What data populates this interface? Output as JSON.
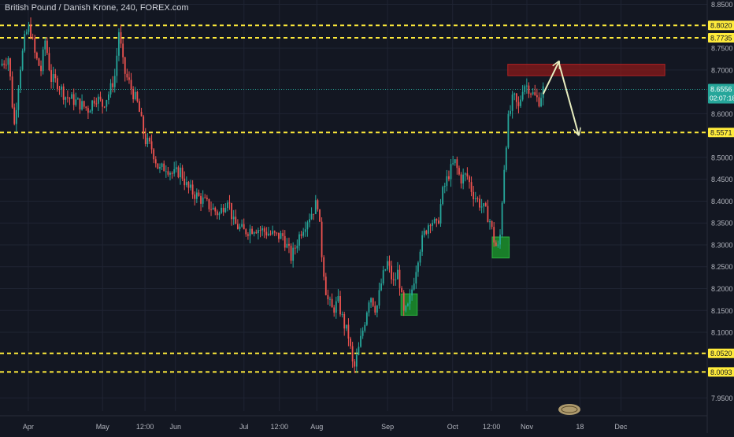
{
  "app": {
    "symbol_title": "British Pound / Danish Krone, 240, FOREX.com"
  },
  "colors": {
    "background": "#131722",
    "grid": "#1f2433",
    "axis_text": "#b2b5be",
    "candle_up": "#26a69a",
    "candle_down": "#ef5350",
    "level_line": "#ffeb3b",
    "level_label_bg": "#ffeb3b",
    "price_label_bg": "#26a69a",
    "resistance_box": "#8b1a1a",
    "support_box": "#1b8a2a",
    "arrow": "#e8eec0"
  },
  "chart_data": {
    "type": "candlestick",
    "title": "British Pound / Danish Krone, 240, FOREX.com",
    "ylim": [
      7.92,
      8.86
    ],
    "y_ticks": [
      {
        "value": 8.85,
        "label": "8.8500"
      },
      {
        "value": 8.75,
        "label": "8.7500"
      },
      {
        "value": 8.7,
        "label": "8.7000"
      },
      {
        "value": 8.6,
        "label": "8.6000"
      },
      {
        "value": 8.5,
        "label": "8.5000"
      },
      {
        "value": 8.45,
        "label": "8.4500"
      },
      {
        "value": 8.4,
        "label": "8.4000"
      },
      {
        "value": 8.35,
        "label": "8.3500"
      },
      {
        "value": 8.3,
        "label": "8.3000"
      },
      {
        "value": 8.25,
        "label": "8.2500"
      },
      {
        "value": 8.2,
        "label": "8.2000"
      },
      {
        "value": 8.15,
        "label": "8.1500"
      },
      {
        "value": 8.1,
        "label": "8.1000"
      },
      {
        "value": 7.95,
        "label": "7.9500"
      }
    ],
    "x_ticks": [
      "Apr",
      "May",
      "12:00",
      "Jun",
      "Jul",
      "12:00",
      "Aug",
      "Sep",
      "Oct",
      "12:00",
      "Nov",
      "18",
      "Dec"
    ],
    "x_tick_pos": [
      0.04,
      0.145,
      0.205,
      0.248,
      0.345,
      0.395,
      0.448,
      0.548,
      0.64,
      0.695,
      0.745,
      0.82,
      0.878
    ],
    "horizontal_levels": [
      {
        "value": 8.802,
        "label": "8.8020"
      },
      {
        "value": 8.7735,
        "label": "8.7735"
      },
      {
        "value": 8.5571,
        "label": "8.5571"
      },
      {
        "value": 8.052,
        "label": "8.0520"
      },
      {
        "value": 8.0093,
        "label": "8.0093"
      }
    ],
    "current_price": {
      "value": 8.6556,
      "label": "8.6556",
      "countdown": "02:07:18"
    },
    "zones": [
      {
        "kind": "resistance",
        "from_x": 0.718,
        "to_x": 0.94,
        "y_low": 8.687,
        "y_high": 8.713
      },
      {
        "kind": "support",
        "from_x": 0.567,
        "to_x": 0.59,
        "y_low": 8.139,
        "y_high": 8.188
      },
      {
        "kind": "support",
        "from_x": 0.696,
        "to_x": 0.72,
        "y_low": 8.27,
        "y_high": 8.318
      }
    ],
    "projection_arrows": [
      {
        "from_x": 0.768,
        "from_y": 8.645,
        "to_x": 0.79,
        "to_y": 8.718
      },
      {
        "from_x": 0.79,
        "from_y": 8.718,
        "to_x": 0.818,
        "to_y": 8.553
      }
    ],
    "price_path": [
      [
        0.0,
        8.71
      ],
      [
        0.012,
        8.73
      ],
      [
        0.02,
        8.57
      ],
      [
        0.028,
        8.7
      ],
      [
        0.036,
        8.78
      ],
      [
        0.042,
        8.8
      ],
      [
        0.05,
        8.73
      ],
      [
        0.058,
        8.7
      ],
      [
        0.064,
        8.77
      ],
      [
        0.072,
        8.68
      ],
      [
        0.082,
        8.67
      ],
      [
        0.092,
        8.64
      ],
      [
        0.105,
        8.63
      ],
      [
        0.115,
        8.62
      ],
      [
        0.125,
        8.61
      ],
      [
        0.135,
        8.64
      ],
      [
        0.145,
        8.62
      ],
      [
        0.155,
        8.65
      ],
      [
        0.163,
        8.69
      ],
      [
        0.168,
        8.79
      ],
      [
        0.175,
        8.7
      ],
      [
        0.185,
        8.66
      ],
      [
        0.195,
        8.62
      ],
      [
        0.205,
        8.54
      ],
      [
        0.215,
        8.52
      ],
      [
        0.225,
        8.47
      ],
      [
        0.235,
        8.48
      ],
      [
        0.245,
        8.46
      ],
      [
        0.255,
        8.47
      ],
      [
        0.265,
        8.43
      ],
      [
        0.28,
        8.41
      ],
      [
        0.295,
        8.39
      ],
      [
        0.31,
        8.37
      ],
      [
        0.322,
        8.41
      ],
      [
        0.33,
        8.35
      ],
      [
        0.345,
        8.33
      ],
      [
        0.36,
        8.34
      ],
      [
        0.375,
        8.33
      ],
      [
        0.39,
        8.32
      ],
      [
        0.4,
        8.32
      ],
      [
        0.412,
        8.27
      ],
      [
        0.425,
        8.33
      ],
      [
        0.435,
        8.36
      ],
      [
        0.443,
        8.38
      ],
      [
        0.449,
        8.4
      ],
      [
        0.455,
        8.28
      ],
      [
        0.462,
        8.18
      ],
      [
        0.47,
        8.15
      ],
      [
        0.478,
        8.17
      ],
      [
        0.486,
        8.12
      ],
      [
        0.493,
        8.09
      ],
      [
        0.5,
        8.01
      ],
      [
        0.507,
        8.06
      ],
      [
        0.515,
        8.12
      ],
      [
        0.523,
        8.19
      ],
      [
        0.532,
        8.15
      ],
      [
        0.54,
        8.22
      ],
      [
        0.548,
        8.26
      ],
      [
        0.556,
        8.21
      ],
      [
        0.563,
        8.24
      ],
      [
        0.571,
        8.14
      ],
      [
        0.578,
        8.16
      ],
      [
        0.585,
        8.22
      ],
      [
        0.593,
        8.29
      ],
      [
        0.601,
        8.33
      ],
      [
        0.609,
        8.36
      ],
      [
        0.618,
        8.34
      ],
      [
        0.626,
        8.42
      ],
      [
        0.634,
        8.46
      ],
      [
        0.643,
        8.49
      ],
      [
        0.651,
        8.45
      ],
      [
        0.66,
        8.46
      ],
      [
        0.668,
        8.42
      ],
      [
        0.676,
        8.4
      ],
      [
        0.685,
        8.38
      ],
      [
        0.692,
        8.36
      ],
      [
        0.7,
        8.3
      ],
      [
        0.706,
        8.29
      ],
      [
        0.712,
        8.46
      ],
      [
        0.718,
        8.58
      ],
      [
        0.726,
        8.64
      ],
      [
        0.733,
        8.61
      ],
      [
        0.74,
        8.67
      ],
      [
        0.748,
        8.66
      ],
      [
        0.755,
        8.64
      ],
      [
        0.762,
        8.63
      ],
      [
        0.768,
        8.6556
      ]
    ]
  }
}
